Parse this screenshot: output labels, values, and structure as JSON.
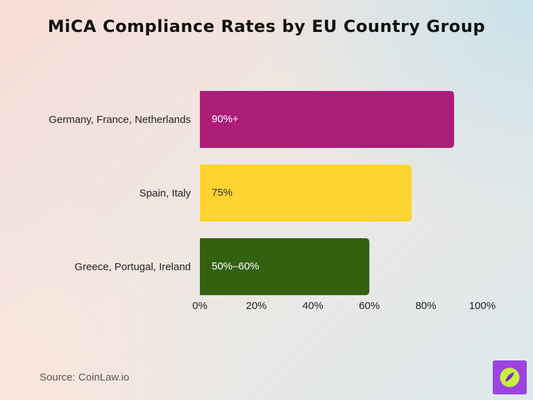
{
  "header": {
    "title": "MiCA Compliance Rates by EU Country Group"
  },
  "footer": {
    "source": "Source: CoinLaw.io"
  },
  "colors": {
    "logo_bg": "#9b44e0",
    "logo_circle": "#c6ef3f",
    "logo_mark": "#7b2ac9"
  },
  "chart_data": {
    "type": "bar",
    "orientation": "horizontal",
    "title": "MiCA Compliance Rates by EU Country Group",
    "categories": [
      "Germany, France, Netherlands",
      "Spain, Italy",
      "Greece, Portugal, Ireland"
    ],
    "values": [
      90,
      75,
      60
    ],
    "data_labels": [
      "90%+",
      "75%",
      "50%–60%"
    ],
    "colors": [
      "#ac1c79",
      "#fed431",
      "#336110"
    ],
    "label_colors": [
      "#ffffff",
      "#333333",
      "#ffffff"
    ],
    "x_ticks": [
      "0%",
      "20%",
      "40%",
      "60%",
      "80%",
      "100%"
    ],
    "xlim": [
      0,
      100
    ],
    "xlabel": "",
    "ylabel": "",
    "grid": false,
    "legend": "none"
  }
}
